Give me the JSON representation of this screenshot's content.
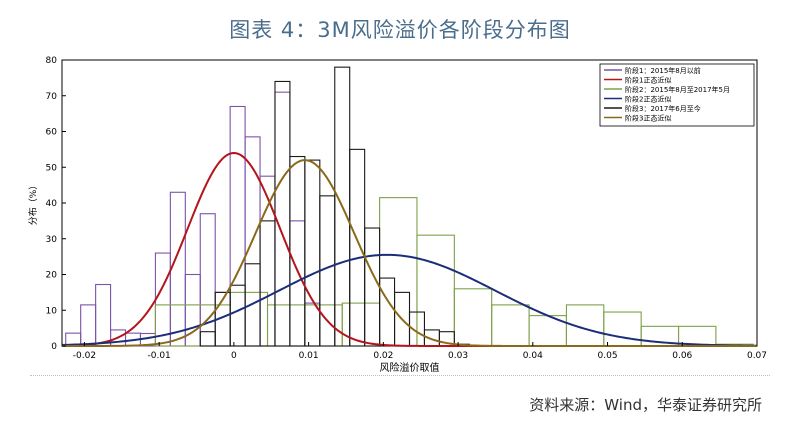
{
  "title": "图表 4：3M风险溢价各阶段分布图",
  "source": "资料来源：Wind，华泰证券研究所",
  "chart_data": {
    "type": "bar",
    "xlabel": "风险溢价取值",
    "ylabel": "分布（%）",
    "xlim": [
      -0.023,
      0.07
    ],
    "ylim": [
      0,
      80
    ],
    "xticks": [
      "-0.02",
      "-0.01",
      "0",
      "0.01",
      "0.02",
      "0.03",
      "0.04",
      "0.05",
      "0.06",
      "0.07"
    ],
    "xtick_values": [
      -0.02,
      -0.01,
      0,
      0.01,
      0.02,
      0.03,
      0.04,
      0.05,
      0.06,
      0.07
    ],
    "yticks": [
      "0",
      "10",
      "20",
      "30",
      "40",
      "50",
      "60",
      "70",
      "80"
    ],
    "ytick_values": [
      0,
      10,
      20,
      30,
      40,
      50,
      60,
      70,
      80
    ],
    "grid": false,
    "legend_position": "top-right",
    "legend": [
      {
        "label": "阶段1：2015年8月以前",
        "color": "#7b53a8"
      },
      {
        "label": "阶段1正态近似",
        "color": "#b3151b"
      },
      {
        "label": "阶段2：2015年8月至2017年5月",
        "color": "#7fa04a"
      },
      {
        "label": "阶段2正态近似",
        "color": "#1c2d7a"
      },
      {
        "label": "阶段3：2017年6月至今",
        "color": "#1a1a1a"
      },
      {
        "label": "阶段3正态近似",
        "color": "#8a6a1a"
      }
    ],
    "histograms": [
      {
        "name": "阶段1：2015年8月以前",
        "color": "#7b53a8",
        "bins": [
          [
            -0.0225,
            -0.0205,
            3.6
          ],
          [
            -0.0205,
            -0.0185,
            11.5
          ],
          [
            -0.0185,
            -0.0165,
            17.2
          ],
          [
            -0.0165,
            -0.0145,
            4.5
          ],
          [
            -0.0145,
            -0.0125,
            3.6
          ],
          [
            -0.0125,
            -0.0105,
            3.5
          ],
          [
            -0.0105,
            -0.0085,
            26.0
          ],
          [
            -0.0085,
            -0.0065,
            43.0
          ],
          [
            -0.0065,
            -0.0045,
            20.0
          ],
          [
            -0.0045,
            -0.0025,
            37.0
          ],
          [
            -0.0025,
            -0.0005,
            15.0
          ],
          [
            -0.0005,
            0.0015,
            67.0
          ],
          [
            0.0015,
            0.0035,
            58.5
          ],
          [
            0.0035,
            0.0055,
            47.5
          ],
          [
            0.0055,
            0.0075,
            71.0
          ],
          [
            0.0075,
            0.0095,
            35.0
          ],
          [
            0.0095,
            0.0115,
            12.0
          ]
        ]
      },
      {
        "name": "阶段2：2015年8月至2017年5月",
        "color": "#7fa04a",
        "bins": [
          [
            -0.0105,
            -0.0005,
            11.5
          ],
          [
            -0.0005,
            0.0045,
            15.0
          ],
          [
            0.0045,
            0.0095,
            11.5
          ],
          [
            0.0095,
            0.0145,
            11.5
          ],
          [
            0.0145,
            0.0195,
            12.0
          ],
          [
            0.0195,
            0.0245,
            41.5
          ],
          [
            0.0245,
            0.0295,
            31.0
          ],
          [
            0.0295,
            0.0345,
            16.0
          ],
          [
            0.0345,
            0.0395,
            11.5
          ],
          [
            0.0395,
            0.0445,
            8.5
          ],
          [
            0.0445,
            0.0495,
            11.5
          ],
          [
            0.0495,
            0.0545,
            9.5
          ],
          [
            0.0545,
            0.0595,
            5.5
          ],
          [
            0.0595,
            0.0645,
            5.5
          ],
          [
            0.0645,
            0.0695,
            0.5
          ]
        ]
      },
      {
        "name": "阶段3：2017年6月至今",
        "color": "#1a1a1a",
        "bins": [
          [
            -0.0045,
            -0.0025,
            4.0
          ],
          [
            -0.0025,
            -0.0005,
            15.0
          ],
          [
            -0.0005,
            0.0015,
            17.0
          ],
          [
            0.0015,
            0.0035,
            23.0
          ],
          [
            0.0035,
            0.0055,
            35.0
          ],
          [
            0.0055,
            0.0075,
            74.0
          ],
          [
            0.0075,
            0.0095,
            53.0
          ],
          [
            0.0095,
            0.0115,
            52.0
          ],
          [
            0.0115,
            0.0135,
            42.0
          ],
          [
            0.0135,
            0.0155,
            78.0
          ],
          [
            0.0155,
            0.0175,
            55.0
          ],
          [
            0.0175,
            0.0195,
            33.0
          ],
          [
            0.0195,
            0.0215,
            19.0
          ],
          [
            0.0215,
            0.0235,
            15.0
          ],
          [
            0.0235,
            0.0255,
            9.5
          ],
          [
            0.0255,
            0.0275,
            4.5
          ],
          [
            0.0275,
            0.0295,
            4.0
          ],
          [
            0.0295,
            0.0315,
            0.5
          ]
        ]
      }
    ],
    "normal_fits": [
      {
        "name": "阶段1正态近似",
        "color": "#b3151b",
        "mean": 0.0,
        "peak": 54.0,
        "sd": 0.0062
      },
      {
        "name": "阶段2正态近似",
        "color": "#1c2d7a",
        "mean": 0.0205,
        "peak": 25.5,
        "sd": 0.0145
      },
      {
        "name": "阶段3正态近似",
        "color": "#8a6a1a",
        "mean": 0.0095,
        "peak": 52.0,
        "sd": 0.0066
      }
    ]
  }
}
